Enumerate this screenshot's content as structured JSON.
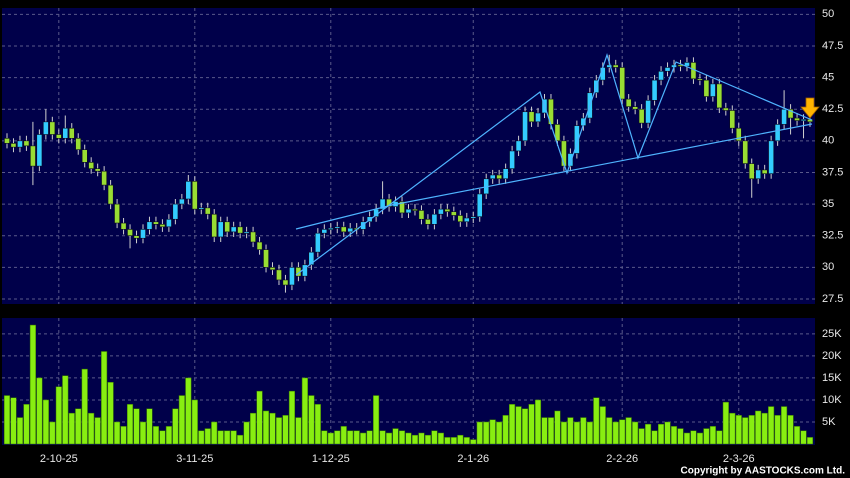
{
  "chart_data": {
    "type": "candlestick",
    "categories": [
      null,
      null,
      null,
      null,
      null,
      null,
      null,
      null,
      "2-10-25",
      null,
      null,
      null,
      null,
      null,
      null,
      null,
      null,
      null,
      null,
      null,
      null,
      null,
      null,
      null,
      null,
      null,
      null,
      null,
      null,
      "3-11-25",
      null,
      null,
      null,
      null,
      null,
      null,
      null,
      null,
      null,
      null,
      null,
      null,
      null,
      null,
      null,
      null,
      null,
      null,
      null,
      null,
      "1-12-25",
      null,
      null,
      null,
      null,
      null,
      null,
      null,
      null,
      null,
      null,
      null,
      null,
      null,
      null,
      null,
      null,
      null,
      null,
      null,
      null,
      null,
      "2-1-26",
      null,
      null,
      null,
      null,
      null,
      null,
      null,
      null,
      null,
      null,
      null,
      null,
      null,
      null,
      null,
      null,
      null,
      null,
      null,
      null,
      null,
      null,
      "2-2-26",
      null,
      null,
      null,
      null,
      null,
      null,
      null,
      null,
      null,
      null,
      null,
      null,
      null,
      null,
      null,
      null,
      null,
      "2-3-26",
      null,
      null,
      null,
      null,
      null,
      null,
      null,
      null,
      null,
      null,
      null
    ],
    "open": [
      40.2,
      39.8,
      39.5,
      40,
      39.6,
      38,
      40.5,
      41.5,
      40.5,
      40.2,
      41,
      40.2,
      39.3,
      38.3,
      37.8,
      37.6,
      36.5,
      35,
      33.5,
      33,
      32.5,
      32.3,
      33,
      33.6,
      33.4,
      33.2,
      33.8,
      35,
      35.4,
      36.8,
      34.6,
      34.7,
      34.2,
      32.4,
      33.6,
      32.8,
      33.2,
      32.7,
      32.8,
      32,
      31.4,
      30,
      29.8,
      29,
      28.6,
      30,
      29.3,
      30.2,
      31.2,
      32.7,
      33,
      33.1,
      33.2,
      32.8,
      33.1,
      33,
      33.6,
      34,
      34.6,
      35.4,
      34.8,
      35.2,
      34.3,
      34.6,
      34.5,
      33.8,
      33.4,
      34.2,
      34.6,
      34.4,
      34.1,
      33.6,
      33.9,
      34,
      35.8,
      37,
      37.3,
      37,
      37.8,
      39.2,
      40,
      42.3,
      41.5,
      42.2,
      43.3,
      41.3,
      40,
      38,
      39,
      41.2,
      41.8,
      43.8,
      44.8,
      45.8,
      46,
      45.8,
      43.3,
      42.7,
      42.5,
      41.4,
      43.2,
      44.8,
      45.5,
      45.8,
      46,
      45.9,
      46.2,
      44.9,
      44.8,
      43.5,
      44.5,
      42.6,
      42.4,
      41,
      40,
      38.2,
      37,
      37.7,
      37.4,
      40,
      41.3,
      42.5,
      41.8,
      41.6,
      41.7
    ],
    "high": [
      40.6,
      40.2,
      40.4,
      40.4,
      41.5,
      40.9,
      42.5,
      41.9,
      40.9,
      42,
      41.4,
      40.6,
      39.7,
      38.7,
      38.2,
      38,
      36.9,
      35.4,
      33.9,
      33.4,
      32.9,
      33.4,
      34,
      34,
      33.8,
      34.2,
      35.4,
      35.8,
      37.3,
      37.2,
      35.1,
      35.1,
      34.6,
      34,
      34,
      33.6,
      33.6,
      33.2,
      33.2,
      32.4,
      31.8,
      30.4,
      30.2,
      29.4,
      30.4,
      30.4,
      30.6,
      31.6,
      33.1,
      33.4,
      33.5,
      33.6,
      33.6,
      33.5,
      33.5,
      34,
      34.4,
      35,
      36.8,
      35.8,
      35.6,
      35.6,
      35,
      35,
      34.9,
      34.2,
      34.6,
      35,
      35,
      34.8,
      34.5,
      34.3,
      34.4,
      36.2,
      37.4,
      37.7,
      37.7,
      38.2,
      39.6,
      40.4,
      42.7,
      42.7,
      42.6,
      43.7,
      43.7,
      41.7,
      40.4,
      39.4,
      41.6,
      42.2,
      44.2,
      45.2,
      46.2,
      46.8,
      46.4,
      46.2,
      43.7,
      43.1,
      42.9,
      43.6,
      45.2,
      45.9,
      46.2,
      46.4,
      46.4,
      46.6,
      46.6,
      45.3,
      45.2,
      44.9,
      44.9,
      43,
      42.8,
      41.4,
      40.4,
      38.6,
      38.1,
      38.1,
      40.4,
      41.7,
      44,
      42.9,
      42.2,
      42.1,
      42.1
    ],
    "low": [
      39.4,
      39.1,
      39.1,
      39.2,
      36.5,
      37.6,
      40.1,
      40.1,
      39.8,
      39.8,
      39.8,
      38.9,
      37.9,
      37.4,
      37.2,
      36.1,
      34.6,
      33.1,
      32.6,
      31.5,
      31.9,
      31.9,
      32.6,
      33,
      32.8,
      32.8,
      33.4,
      34.6,
      35,
      34.2,
      34.2,
      33.8,
      32,
      32,
      32.4,
      32.4,
      32.3,
      32.3,
      31.6,
      31,
      29.6,
      29.4,
      28.6,
      28,
      28.2,
      28.9,
      28.9,
      29.8,
      30.8,
      32.3,
      32.6,
      32.7,
      32.4,
      32.4,
      32.6,
      32.6,
      33.2,
      33.6,
      34.2,
      34.4,
      34.4,
      33.9,
      33.9,
      34.1,
      33.4,
      33,
      33,
      33.8,
      34,
      33.7,
      33.2,
      33.2,
      33.5,
      33.6,
      35.4,
      36.6,
      36.6,
      36.6,
      37.4,
      38.8,
      39.6,
      41.1,
      41.1,
      41.8,
      40.9,
      39.6,
      37.6,
      37.6,
      38.6,
      40.8,
      41.4,
      43.4,
      44.4,
      45.4,
      45.4,
      42.9,
      42.3,
      42.1,
      41,
      41,
      42.8,
      44.4,
      45.1,
      45.4,
      45.5,
      45.5,
      44.5,
      44.4,
      43.1,
      43.1,
      42.2,
      42,
      40.6,
      39.6,
      37.8,
      35.5,
      36.6,
      37,
      37,
      39.6,
      40.9,
      40.5,
      41.2,
      40.2,
      41.1
    ],
    "close": [
      39.8,
      39.5,
      40,
      39.6,
      38,
      40.5,
      41.5,
      40.5,
      40.2,
      41,
      40.2,
      39.3,
      38.3,
      37.8,
      37.6,
      36.5,
      35,
      33.5,
      33,
      32.5,
      32.3,
      33,
      33.6,
      33.4,
      33.2,
      33.8,
      35,
      35.4,
      36.8,
      34.6,
      34.7,
      34.2,
      32.4,
      33.6,
      32.8,
      33.2,
      32.7,
      32.8,
      32,
      31.4,
      30,
      29.8,
      29,
      28.6,
      30,
      29.3,
      30.2,
      31.2,
      32.7,
      33,
      33.1,
      33.2,
      32.8,
      33.1,
      33,
      33.6,
      34,
      34.6,
      35.4,
      34.8,
      35.2,
      34.3,
      34.6,
      34.5,
      33.8,
      33.4,
      34.2,
      34.6,
      34.4,
      34.1,
      33.6,
      33.9,
      34,
      35.8,
      37,
      37.3,
      37,
      37.8,
      39.2,
      40,
      42.3,
      41.5,
      42.2,
      43.3,
      41.3,
      40,
      38,
      39,
      41.2,
      41.8,
      43.8,
      44.8,
      45.8,
      46,
      45.8,
      43.3,
      42.7,
      42.5,
      41.4,
      43.2,
      44.8,
      45.5,
      45.8,
      46,
      45.9,
      46.2,
      44.9,
      44.8,
      43.5,
      44.5,
      42.6,
      42.4,
      41,
      40,
      38.2,
      37,
      37.7,
      37.4,
      40,
      41.3,
      42.5,
      41.8,
      41.6,
      41.7,
      41.5
    ],
    "up_color": "#33ccff",
    "down_color": "#99dd33",
    "ylim": [
      27.1,
      50.5
    ],
    "yticks": [
      27.5,
      30,
      32.5,
      35,
      37.5,
      40,
      42.5,
      45,
      47.5,
      50
    ],
    "grid": true,
    "volume": {
      "type": "bar",
      "color": "#88ee11",
      "values": [
        11000,
        10500,
        6000,
        9000,
        27000,
        15000,
        10000,
        5000,
        13000,
        15500,
        7000,
        8000,
        17000,
        7000,
        6000,
        21000,
        14000,
        5000,
        4000,
        9000,
        8000,
        5000,
        8000,
        4000,
        3000,
        4000,
        8000,
        11000,
        15000,
        10000,
        3000,
        3500,
        5000,
        3000,
        3000,
        3000,
        2000,
        5000,
        7000,
        12000,
        7500,
        7000,
        6000,
        6500,
        12000,
        6000,
        15000,
        11000,
        9000,
        3000,
        2500,
        3000,
        4000,
        3000,
        3000,
        2500,
        3000,
        11000,
        3000,
        2500,
        3500,
        3000,
        2500,
        2000,
        2500,
        2000,
        3000,
        2500,
        1500,
        1500,
        2000,
        1500,
        1000,
        5000,
        5000,
        5500,
        5000,
        6500,
        9000,
        8500,
        8000,
        9000,
        10000,
        6000,
        6000,
        7500,
        5000,
        6000,
        5000,
        6000,
        5000,
        10500,
        8500,
        6000,
        5000,
        5500,
        6000,
        5000,
        3500,
        4500,
        3000,
        4500,
        5000,
        4000,
        3500,
        2500,
        3000,
        2500,
        3500,
        4000,
        3000,
        9500,
        7000,
        6500,
        6000,
        6500,
        7500,
        7000,
        8500,
        6500,
        8500,
        6500,
        4000,
        3000,
        1500
      ],
      "ylim": [
        0,
        28600
      ],
      "yticks": [
        {
          "value": 5000,
          "label": "5K"
        },
        {
          "value": 10000,
          "label": "10K"
        },
        {
          "value": 15000,
          "label": "15K"
        },
        {
          "value": 20000,
          "label": "20K"
        },
        {
          "value": 25000,
          "label": "25K"
        }
      ]
    },
    "source": "Copyright by AASTOCKS.com Ltd."
  }
}
